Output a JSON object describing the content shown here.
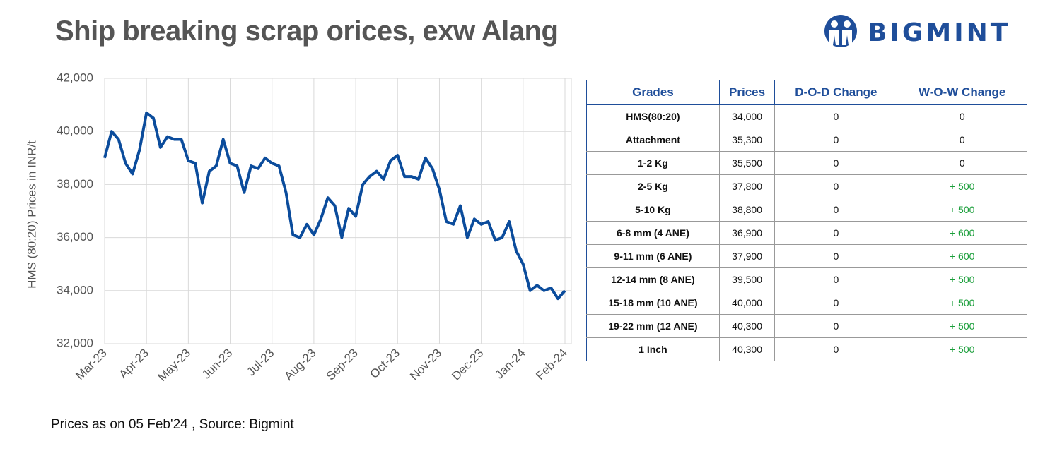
{
  "logo": "BIGMINT",
  "footer": "Prices as on 05 Feb'24 , Source: Bigmint",
  "chart_data": {
    "type": "line",
    "title": "Ship breaking scrap orices, exw Alang",
    "ylabel": "HMS (80:20) Prices in INR/t",
    "color": "#0b4c9c",
    "categories": [
      "Mar-23",
      null,
      null,
      null,
      null,
      null,
      "Apr-23",
      null,
      null,
      null,
      null,
      null,
      "May-23",
      null,
      null,
      null,
      null,
      null,
      "Jun-23",
      null,
      null,
      null,
      null,
      null,
      "Jul-23",
      null,
      null,
      null,
      null,
      null,
      "Aug-23",
      null,
      null,
      null,
      null,
      null,
      "Sep-23",
      null,
      null,
      null,
      null,
      null,
      "Oct-23",
      null,
      null,
      null,
      null,
      null,
      "Nov-23",
      null,
      null,
      null,
      null,
      null,
      "Dec-23",
      null,
      null,
      null,
      null,
      null,
      "Jan-24",
      null,
      null,
      null,
      null,
      null,
      "Feb-24"
    ],
    "values": [
      39000,
      40000,
      39700,
      38800,
      38400,
      39300,
      40700,
      40500,
      39400,
      39800,
      39700,
      39700,
      38900,
      38800,
      37300,
      38500,
      38700,
      39700,
      38800,
      38700,
      37700,
      38700,
      38600,
      39000,
      38800,
      38700,
      37700,
      36100,
      36000,
      36500,
      36100,
      36700,
      37500,
      37200,
      36000,
      37100,
      36800,
      38000,
      38300,
      38500,
      38200,
      38900,
      39100,
      38300,
      38300,
      38200,
      39000,
      38600,
      37800,
      36600,
      36500,
      37200,
      36000,
      36700,
      36500,
      36600,
      35900,
      36000,
      36600,
      35500,
      35000,
      34000,
      34200,
      34000,
      34100,
      33700,
      34000
    ],
    "ylim": [
      32000,
      42000
    ],
    "yticks": [
      {
        "value": 32000,
        "label": "32,000"
      },
      {
        "value": 34000,
        "label": "34,000"
      },
      {
        "value": 36000,
        "label": "36,000"
      },
      {
        "value": 38000,
        "label": "38,000"
      },
      {
        "value": 40000,
        "label": "40,000"
      },
      {
        "value": 42000,
        "label": "42,000"
      }
    ],
    "grid": true
  },
  "table": {
    "columns": [
      "Grades",
      "Prices",
      "D-O-D Change",
      "W-O-W Change"
    ],
    "rows": [
      [
        "HMS(80:20)",
        "34,000",
        "0",
        "0"
      ],
      [
        "Attachment",
        "35,300",
        "0",
        "0"
      ],
      [
        "1-2 Kg",
        "35,500",
        "0",
        "0"
      ],
      [
        "2-5 Kg",
        "37,800",
        "0",
        "+ 500"
      ],
      [
        "5-10 Kg",
        "38,800",
        "0",
        "+ 500"
      ],
      [
        "6-8 mm (4 ANE)",
        "36,900",
        "0",
        "+ 600"
      ],
      [
        "9-11 mm (6 ANE)",
        "37,900",
        "0",
        "+ 600"
      ],
      [
        "12-14 mm (8 ANE)",
        "39,500",
        "0",
        "+ 500"
      ],
      [
        "15-18 mm (10 ANE)",
        "40,000",
        "0",
        "+ 500"
      ],
      [
        "19-22 mm (12 ANE)",
        "40,300",
        "0",
        "+ 500"
      ],
      [
        "1 Inch",
        "40,300",
        "0",
        "+ 500"
      ]
    ]
  }
}
